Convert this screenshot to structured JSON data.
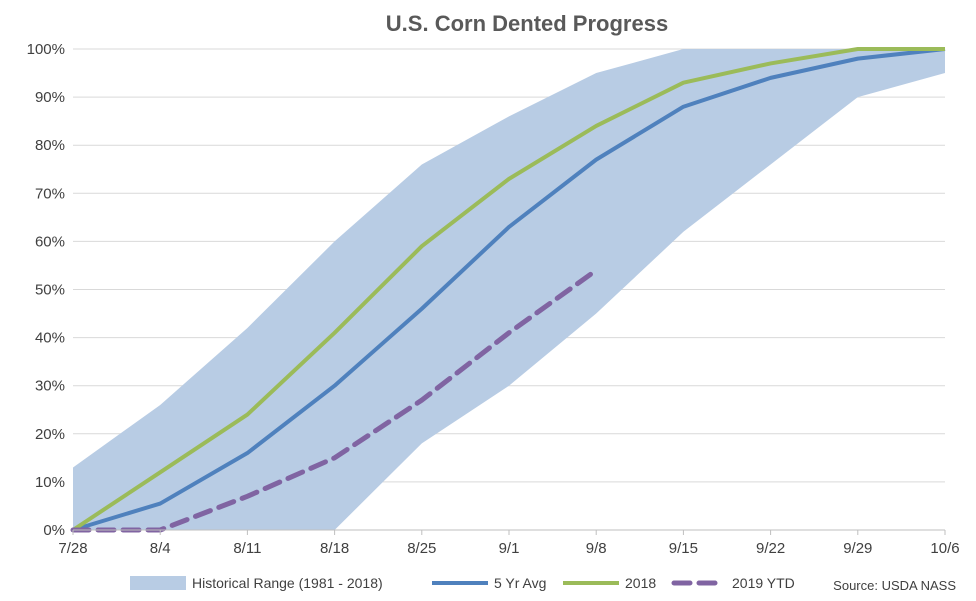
{
  "chart_data": {
    "type": "line",
    "title": "U.S. Corn Dented Progress",
    "categories": [
      "7/28",
      "8/4",
      "8/11",
      "8/18",
      "8/25",
      "9/1",
      "9/8",
      "9/15",
      "9/22",
      "9/29",
      "10/6"
    ],
    "y_tick_labels": [
      "0%",
      "10%",
      "20%",
      "30%",
      "40%",
      "50%",
      "60%",
      "70%",
      "80%",
      "90%",
      "100%"
    ],
    "ylim": [
      0,
      100
    ],
    "grid": true,
    "legend_placement": "bottom",
    "range": {
      "name": "Historical Range (1981 - 2018)",
      "color": "#b8cce4",
      "low": [
        0,
        0,
        0,
        0,
        18,
        30,
        45,
        62,
        76,
        90,
        95
      ],
      "high": [
        13,
        26,
        42,
        60,
        76,
        86,
        95,
        100,
        100,
        100,
        100
      ]
    },
    "series": [
      {
        "name": "5 Yr Avg",
        "color": "#4f81bd",
        "dashed": false,
        "values": [
          0,
          5.5,
          16,
          30,
          46,
          63,
          77,
          88,
          94,
          98,
          100
        ]
      },
      {
        "name": "2018",
        "color": "#9bbb59",
        "dashed": false,
        "values": [
          0,
          12,
          24,
          41,
          59,
          73,
          84,
          93,
          97,
          100,
          100
        ]
      },
      {
        "name": "2019 YTD",
        "color": "#8064a2",
        "dashed": true,
        "values": [
          0,
          0,
          7,
          15,
          27,
          41,
          54,
          null,
          null,
          null,
          null
        ]
      }
    ],
    "source": "Source: USDA NASS"
  }
}
